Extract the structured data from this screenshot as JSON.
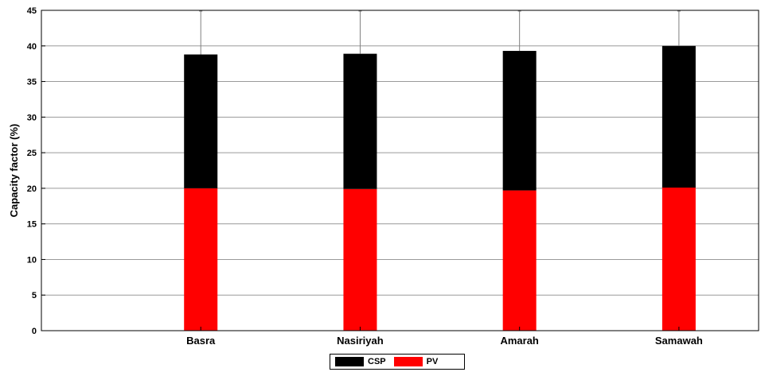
{
  "chart_data": {
    "type": "bar",
    "stacked": true,
    "title": "",
    "xlabel": "",
    "ylabel": "Capacity factor (%)",
    "ylim": [
      0,
      45
    ],
    "yticks": [
      0,
      5,
      10,
      15,
      20,
      25,
      30,
      35,
      40,
      45
    ],
    "grid": true,
    "categories": [
      "Basra",
      "Nasiriyah",
      "Amarah",
      "Samawah"
    ],
    "series": [
      {
        "name": "PV",
        "color": "#ff0000",
        "values": [
          20.0,
          19.9,
          19.7,
          20.1
        ]
      },
      {
        "name": "CSP",
        "color": "#000000",
        "values": [
          18.8,
          19.0,
          19.6,
          19.9
        ]
      }
    ],
    "error_bar_top": [
      45,
      45,
      45,
      45
    ],
    "legend_placement": "bottom-center"
  }
}
